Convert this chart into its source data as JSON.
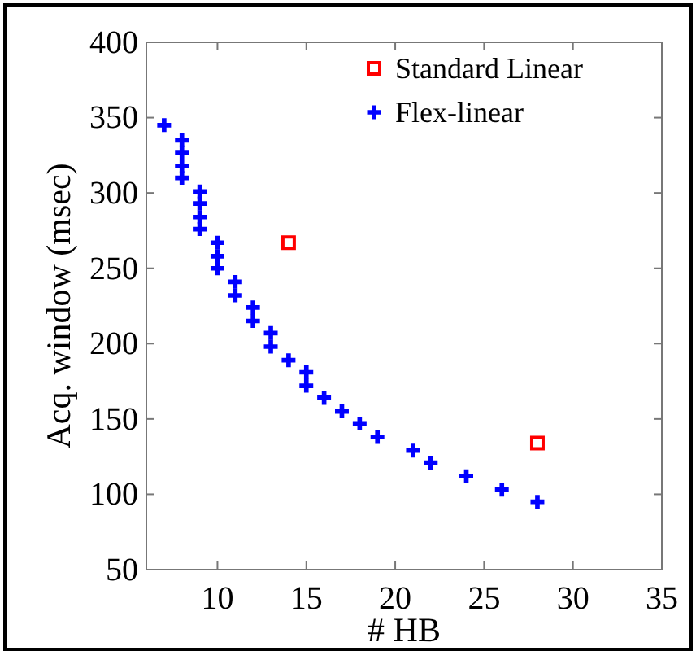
{
  "chart_data": {
    "type": "scatter",
    "xlabel": "# HB",
    "ylabel": "Acq. window (msec)",
    "xlim": [
      6,
      35
    ],
    "xticks": [
      10,
      15,
      20,
      25,
      30,
      35
    ],
    "ylim": [
      50,
      400
    ],
    "yticks": [
      50,
      100,
      150,
      200,
      250,
      300,
      350,
      400
    ],
    "grid": false,
    "legend": "top right",
    "series": [
      {
        "name": "Standard Linear",
        "color": "#ff0000",
        "marker": "square",
        "x": [
          14,
          28
        ],
        "values": [
          267,
          134
        ]
      },
      {
        "name": "Flex-linear",
        "color": "#0000ff",
        "marker": "cross",
        "x": [
          7,
          8,
          8,
          8,
          8,
          9,
          9,
          9,
          9,
          10,
          10,
          10,
          11,
          11,
          12,
          12,
          13,
          13,
          14,
          15,
          15,
          16,
          17,
          18,
          19,
          21,
          22,
          24,
          26,
          28
        ],
        "values": [
          345,
          335,
          327,
          318,
          310,
          301,
          293,
          284,
          276,
          267,
          258,
          250,
          241,
          232,
          224,
          215,
          207,
          198,
          189,
          181,
          172,
          164,
          155,
          147,
          138,
          129,
          121,
          112,
          103,
          95
        ]
      }
    ]
  }
}
